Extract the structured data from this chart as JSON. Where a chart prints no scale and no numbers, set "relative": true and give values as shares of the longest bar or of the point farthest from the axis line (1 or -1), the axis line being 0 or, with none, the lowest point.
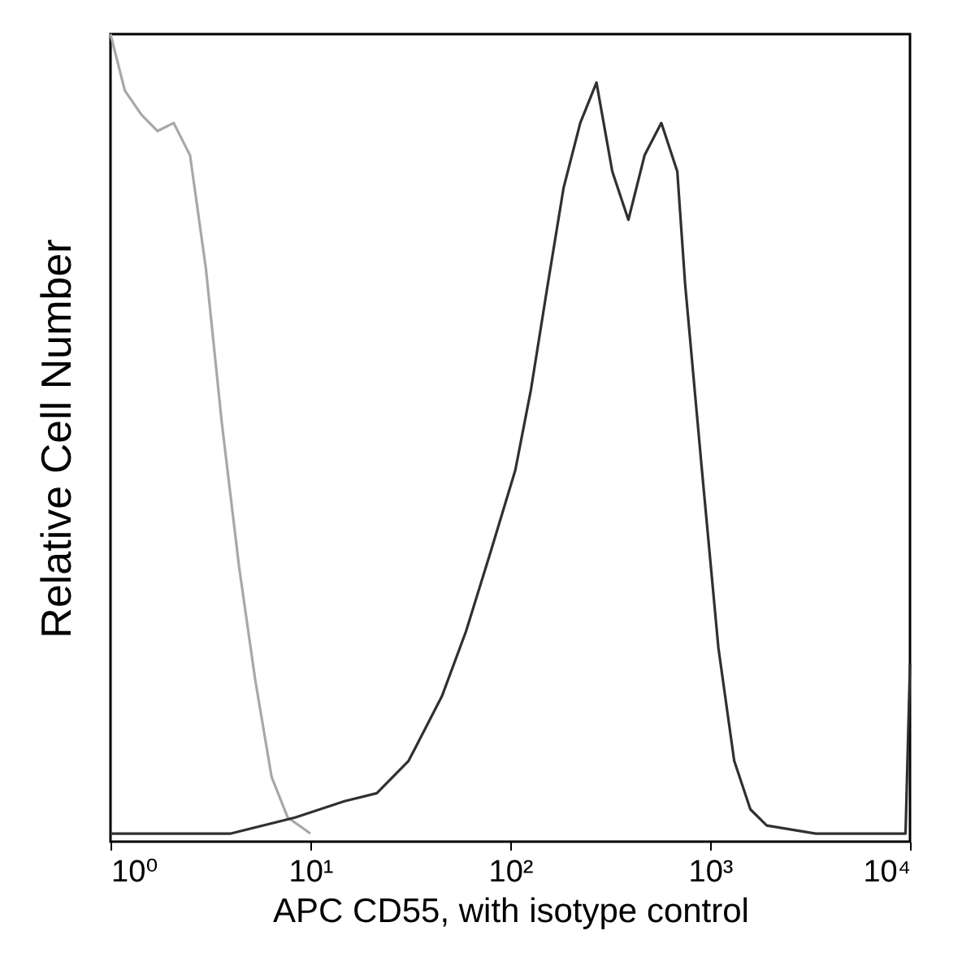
{
  "chart_data": {
    "type": "line",
    "xlabel": "APC CD55, with isotype control",
    "ylabel": "Relative Cell Number",
    "relative": true,
    "log": "x",
    "grid": false,
    "marker": "none",
    "line_style": "solid",
    "xlim": [
      1,
      10000
    ],
    "xticks": [
      {
        "value": 1,
        "label": "10⁰"
      },
      {
        "value": 10,
        "label": "10¹"
      },
      {
        "value": 100,
        "label": "10²"
      },
      {
        "value": 1000,
        "label": "10³"
      },
      {
        "value": 10000,
        "label": "10⁴"
      }
    ],
    "series": [
      {
        "color": "#a8a8a8",
        "x": [
          1,
          1.18,
          1.43,
          1.72,
          2.07,
          2.5,
          3.0,
          3.6,
          4.4,
          5.3,
          6.4,
          7.7,
          10
        ],
        "values": [
          1.0,
          0.93,
          0.9,
          0.88,
          0.89,
          0.85,
          0.71,
          0.52,
          0.34,
          0.2,
          0.08,
          0.03,
          0.01
        ]
      },
      {
        "color": "#303030",
        "x": [
          1,
          1.89,
          4.0,
          8.4,
          14.8,
          21.5,
          31,
          45.5,
          60,
          80,
          106,
          127,
          154,
          185,
          224,
          270,
          324,
          390,
          470,
          570,
          685,
          750,
          910,
          1100,
          1320,
          1590,
          1920,
          3380,
          7100,
          9500,
          10000
        ],
        "values": [
          0.01,
          0.01,
          0.01,
          0.03,
          0.05,
          0.06,
          0.1,
          0.18,
          0.26,
          0.36,
          0.46,
          0.56,
          0.69,
          0.81,
          0.89,
          0.94,
          0.83,
          0.77,
          0.85,
          0.89,
          0.83,
          0.69,
          0.46,
          0.24,
          0.1,
          0.04,
          0.02,
          0.01,
          0.01,
          0.01,
          0.22
        ]
      }
    ]
  }
}
